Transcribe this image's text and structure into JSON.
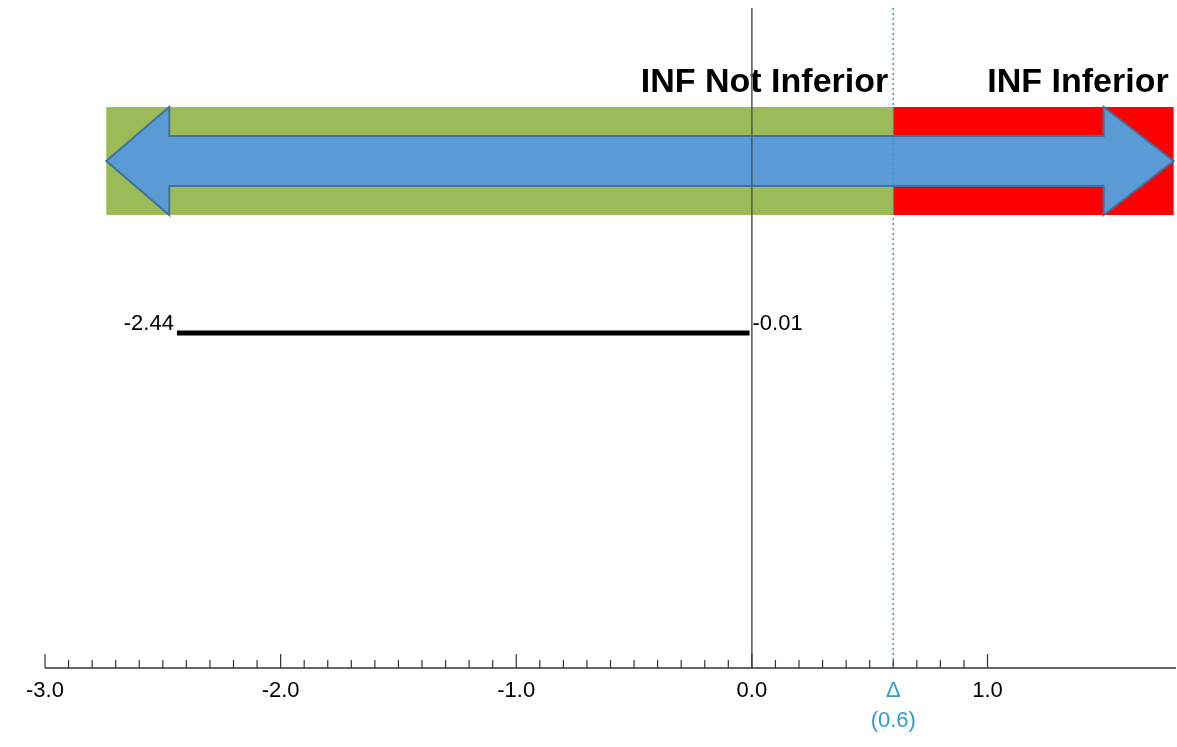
{
  "chart_data": {
    "type": "bar",
    "orientation": "horizontal",
    "categories": [
      null
    ],
    "values": [
      2.43
    ],
    "base": [
      -2.44
    ],
    "color": "#000000",
    "xlim": [
      -3.0,
      1.8
    ],
    "xticks": [
      {
        "value": -3.0,
        "label": "-3.0"
      },
      {
        "value": -2.9,
        "label": null
      },
      {
        "value": -2.8,
        "label": null
      },
      {
        "value": -2.7,
        "label": null
      },
      {
        "value": -2.6,
        "label": null
      },
      {
        "value": -2.5,
        "label": null
      },
      {
        "value": -2.4,
        "label": null
      },
      {
        "value": -2.3,
        "label": null
      },
      {
        "value": -2.2,
        "label": null
      },
      {
        "value": -2.1,
        "label": null
      },
      {
        "value": -2.0,
        "label": "-2.0"
      },
      {
        "value": -1.9,
        "label": null
      },
      {
        "value": -1.8,
        "label": null
      },
      {
        "value": -1.7,
        "label": null
      },
      {
        "value": -1.6,
        "label": null
      },
      {
        "value": -1.5,
        "label": null
      },
      {
        "value": -1.4,
        "label": null
      },
      {
        "value": -1.3,
        "label": null
      },
      {
        "value": -1.2,
        "label": null
      },
      {
        "value": -1.1,
        "label": null
      },
      {
        "value": -1.0,
        "label": "-1.0"
      },
      {
        "value": -0.9,
        "label": null
      },
      {
        "value": -0.8,
        "label": null
      },
      {
        "value": -0.7,
        "label": null
      },
      {
        "value": -0.6,
        "label": null
      },
      {
        "value": -0.5,
        "label": null
      },
      {
        "value": -0.4,
        "label": null
      },
      {
        "value": -0.3,
        "label": null
      },
      {
        "value": -0.2,
        "label": null
      },
      {
        "value": -0.1,
        "label": null
      },
      {
        "value": 0.0,
        "label": "0.0"
      },
      {
        "value": 0.1,
        "label": null
      },
      {
        "value": 0.2,
        "label": null
      },
      {
        "value": 0.3,
        "label": null
      },
      {
        "value": 0.4,
        "label": null
      },
      {
        "value": 0.5,
        "label": null
      },
      {
        "value": 0.6,
        "label": null
      },
      {
        "value": 0.7,
        "label": null
      },
      {
        "value": 0.8,
        "label": null
      },
      {
        "value": 0.9,
        "label": null
      },
      {
        "value": 1.0,
        "label": "1.0"
      }
    ],
    "bands": [
      {
        "axis": "x",
        "from": -2.74,
        "to": 0.6,
        "label": "INF Not Inferior",
        "color": "#9bbb59"
      },
      {
        "axis": "x",
        "from": 0.6,
        "to": 1.79,
        "label": "INF Inferior",
        "color": "#ff0000"
      }
    ],
    "ref_lines": [
      {
        "axis": "x",
        "value": 0,
        "color": "#555555",
        "line_style": "solid"
      },
      {
        "axis": "x",
        "value": 0.6,
        "label": "Δ (0.6)",
        "color": "#2f9bd6",
        "line_style": "dotted"
      }
    ],
    "annotations": [
      "-2.44",
      "-0.01"
    ]
  }
}
